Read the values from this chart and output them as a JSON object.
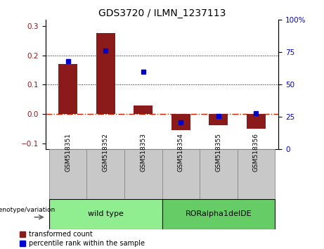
{
  "title": "GDS3720 / ILMN_1237113",
  "categories": [
    "GSM518351",
    "GSM518352",
    "GSM518353",
    "GSM518354",
    "GSM518355",
    "GSM518356"
  ],
  "red_values": [
    0.17,
    0.275,
    0.03,
    -0.055,
    -0.038,
    -0.05
  ],
  "blue_values": [
    68,
    76,
    60,
    21,
    26,
    28
  ],
  "red_color": "#8B1A1A",
  "blue_color": "#0000CC",
  "ylim_left": [
    -0.12,
    0.32
  ],
  "ylim_right": [
    0,
    100
  ],
  "yticks_left": [
    -0.1,
    0.0,
    0.1,
    0.2,
    0.3
  ],
  "yticks_right": [
    0,
    25,
    50,
    75,
    100
  ],
  "hline_zero_color": "#CC2200",
  "grid_color": "#000000",
  "genotype_groups": [
    {
      "label": "wild type",
      "start": 0,
      "end": 3,
      "color": "#90EE90"
    },
    {
      "label": "RORalpha1delDE",
      "start": 3,
      "end": 6,
      "color": "#66CC66"
    }
  ],
  "genotype_label": "genotype/variation",
  "legend_red": "transformed count",
  "legend_blue": "percentile rank within the sample",
  "bar_width": 0.5,
  "marker_size": 5,
  "tick_bg_color": "#C8C8C8",
  "plot_bg_color": "#FFFFFF",
  "outside_bg_color": "#FFFFFF"
}
